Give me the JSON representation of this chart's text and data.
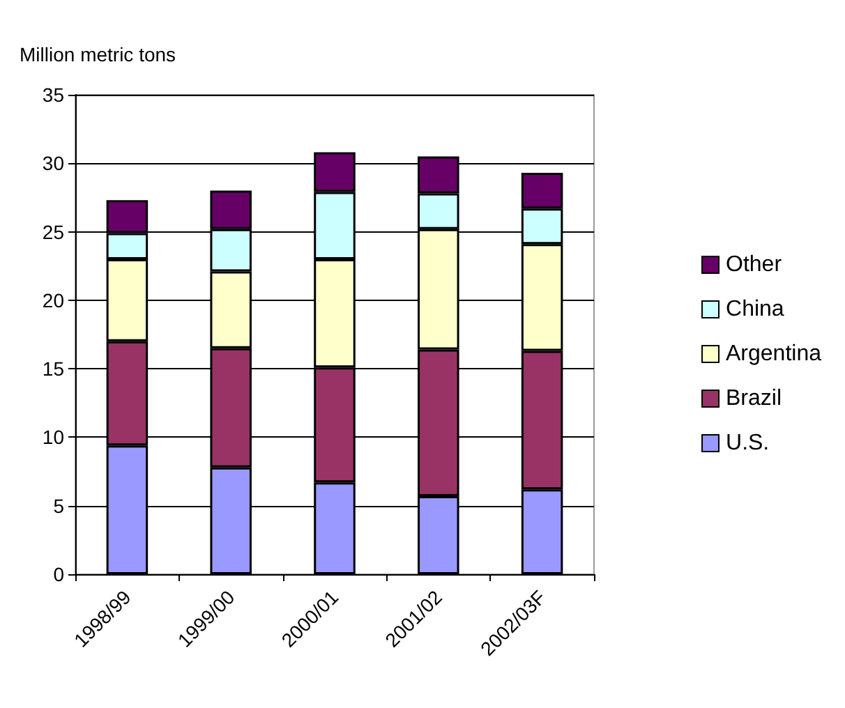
{
  "chart_data": {
    "type": "bar",
    "stacked": true,
    "ylabel": "Million metric tons",
    "categories": [
      "1998/99",
      "1999/00",
      "2000/01",
      "2001/02",
      "2002/03F"
    ],
    "series": [
      {
        "name": "U.S.",
        "color": "#9999ff",
        "values": [
          9.4,
          7.8,
          6.7,
          5.7,
          6.2
        ]
      },
      {
        "name": "Brazil",
        "color": "#993366",
        "values": [
          7.6,
          8.7,
          8.4,
          10.7,
          10.1
        ]
      },
      {
        "name": "Argentina",
        "color": "#ffffcc",
        "values": [
          6.0,
          5.6,
          7.9,
          8.8,
          7.8
        ]
      },
      {
        "name": "China",
        "color": "#ccffff",
        "values": [
          1.9,
          3.1,
          4.9,
          2.6,
          2.6
        ]
      },
      {
        "name": "Other",
        "color": "#660066",
        "values": [
          2.4,
          2.8,
          2.9,
          2.7,
          2.6
        ]
      }
    ],
    "ylim": [
      0,
      35
    ],
    "yticks": [
      0,
      5,
      10,
      15,
      20,
      25,
      30,
      35
    ],
    "grid": "y",
    "legend": "right"
  }
}
